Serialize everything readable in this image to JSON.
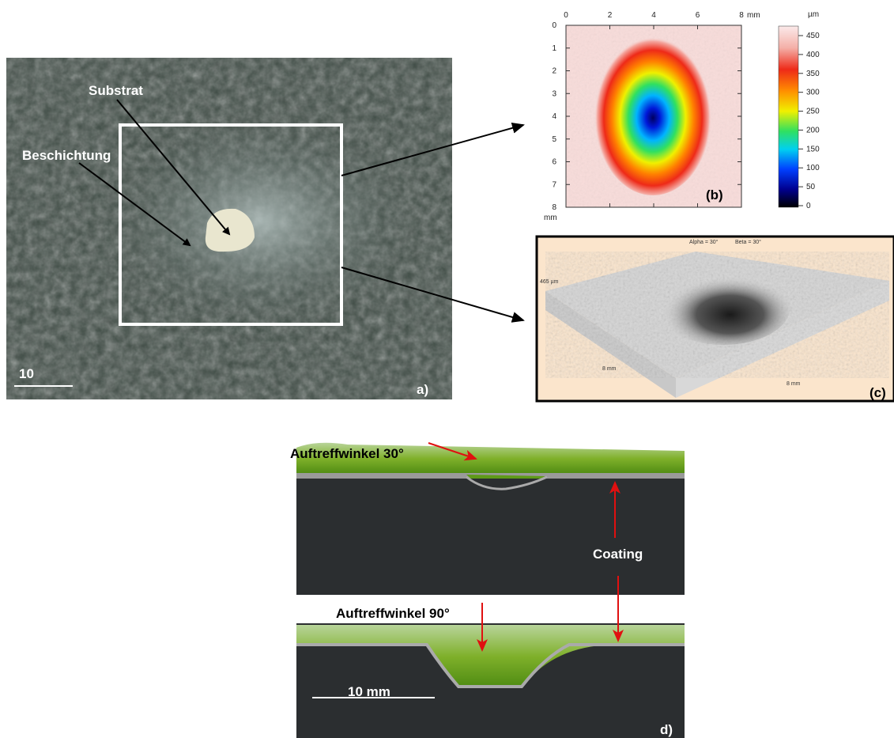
{
  "panels": {
    "a": {
      "label": "a)",
      "substrate_label": "Substrat",
      "coating_label": "Beschichtung",
      "scale_bar": "10"
    },
    "b": {
      "label": "(b)",
      "x_unit": "mm",
      "y_unit": "mm",
      "colorbar_unit": "µm",
      "x_ticks": [
        0,
        2,
        4,
        6,
        8
      ],
      "y_ticks": [
        0,
        1,
        2,
        3,
        4,
        5,
        6,
        7,
        8
      ],
      "colorbar_ticks": [
        450,
        400,
        350,
        300,
        250,
        200,
        150,
        100,
        50,
        0
      ]
    },
    "c": {
      "label": "(c)",
      "alpha": "Alpha = 30°",
      "beta": "Beta = 30°",
      "height": "465 µm",
      "x_length": "8 mm",
      "y_length": "8 mm"
    },
    "d": {
      "label": "d)",
      "angle_30": "Auftreffwinkel 30°",
      "angle_90": "Auftreffwinkel 90°",
      "coating": "Coating",
      "scale_bar": "10 mm"
    }
  }
}
